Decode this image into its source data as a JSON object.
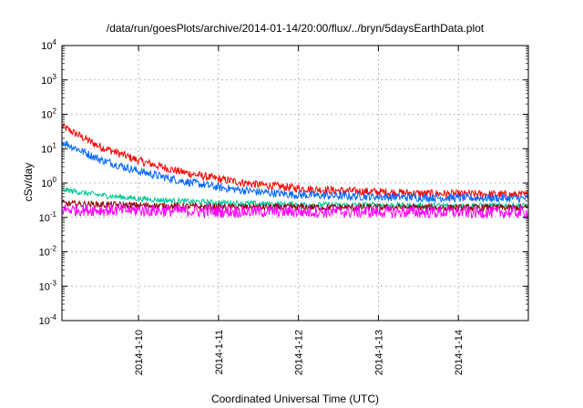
{
  "chart_data": {
    "type": "line",
    "title": "/data/run/goesPlots/archive/2014-01-14/20:00/flux/../bryn/5daysEarthData.plot",
    "xlabel": "Coordinated Universal Time (UTC)",
    "ylabel": "cSv/day",
    "yscale": "log",
    "ylim": [
      0.0001,
      10000
    ],
    "y_ticks": [
      {
        "value": 0.0001,
        "base": "10",
        "exp": "-4"
      },
      {
        "value": 0.001,
        "base": "10",
        "exp": "-3"
      },
      {
        "value": 0.01,
        "base": "10",
        "exp": "-2"
      },
      {
        "value": 0.1,
        "base": "10",
        "exp": "-1"
      },
      {
        "value": 1,
        "base": "10",
        "exp": "0"
      },
      {
        "value": 10,
        "base": "10",
        "exp": "1"
      },
      {
        "value": 100,
        "base": "10",
        "exp": "2"
      },
      {
        "value": 1000,
        "base": "10",
        "exp": "3"
      },
      {
        "value": 10000,
        "base": "10",
        "exp": "4"
      }
    ],
    "xlim": [
      "2014-01-09 01:00",
      "2014-01-14 21:00"
    ],
    "x_ticks": [
      {
        "value": "2014-01-10",
        "label": "2014-1-10"
      },
      {
        "value": "2014-01-11",
        "label": "2014-1-11"
      },
      {
        "value": "2014-01-12",
        "label": "2014-1-12"
      },
      {
        "value": "2014-01-13",
        "label": "2014-1-13"
      },
      {
        "value": "2014-01-14",
        "label": "2014-1-14"
      }
    ],
    "grid": true,
    "legend": "none",
    "series": [
      {
        "color": "#ff0000",
        "noise": 0.12,
        "x": [
          "2014-01-09 01:00",
          "2014-01-09 12:00",
          "2014-01-10 00:00",
          "2014-01-10 12:00",
          "2014-01-11 00:00",
          "2014-01-11 12:00",
          "2014-01-12 00:00",
          "2014-01-12 12:00",
          "2014-01-13 00:00",
          "2014-01-13 12:00",
          "2014-01-14 00:00",
          "2014-01-14 21:00"
        ],
        "y": [
          45,
          12,
          4.5,
          2.2,
          1.3,
          0.9,
          0.7,
          0.6,
          0.55,
          0.5,
          0.48,
          0.45
        ]
      },
      {
        "color": "#0066ff",
        "noise": 0.12,
        "x": [
          "2014-01-09 01:00",
          "2014-01-09 12:00",
          "2014-01-10 00:00",
          "2014-01-10 12:00",
          "2014-01-11 00:00",
          "2014-01-11 12:00",
          "2014-01-12 00:00",
          "2014-01-12 12:00",
          "2014-01-13 00:00",
          "2014-01-13 12:00",
          "2014-01-14 00:00",
          "2014-01-14 21:00"
        ],
        "y": [
          16,
          5,
          2.2,
          1.2,
          0.75,
          0.55,
          0.45,
          0.42,
          0.4,
          0.38,
          0.37,
          0.36
        ]
      },
      {
        "color": "#00c896",
        "noise": 0.08,
        "x": [
          "2014-01-09 01:00",
          "2014-01-09 12:00",
          "2014-01-10 00:00",
          "2014-01-10 12:00",
          "2014-01-11 00:00",
          "2014-01-11 12:00",
          "2014-01-12 00:00",
          "2014-01-12 12:00",
          "2014-01-13 00:00",
          "2014-01-13 12:00",
          "2014-01-14 00:00",
          "2014-01-14 21:00"
        ],
        "y": [
          0.65,
          0.45,
          0.35,
          0.3,
          0.27,
          0.25,
          0.24,
          0.23,
          0.23,
          0.22,
          0.22,
          0.22
        ]
      },
      {
        "color": "#8b0000",
        "noise": 0.1,
        "x": [
          "2014-01-09 01:00",
          "2014-01-11 00:00",
          "2014-01-14 21:00"
        ],
        "y": [
          0.25,
          0.2,
          0.19
        ]
      },
      {
        "color": "#ff00ff",
        "noise": 0.18,
        "x": [
          "2014-01-09 01:00",
          "2014-01-11 00:00",
          "2014-01-14 21:00"
        ],
        "y": [
          0.17,
          0.15,
          0.14
        ]
      }
    ]
  }
}
